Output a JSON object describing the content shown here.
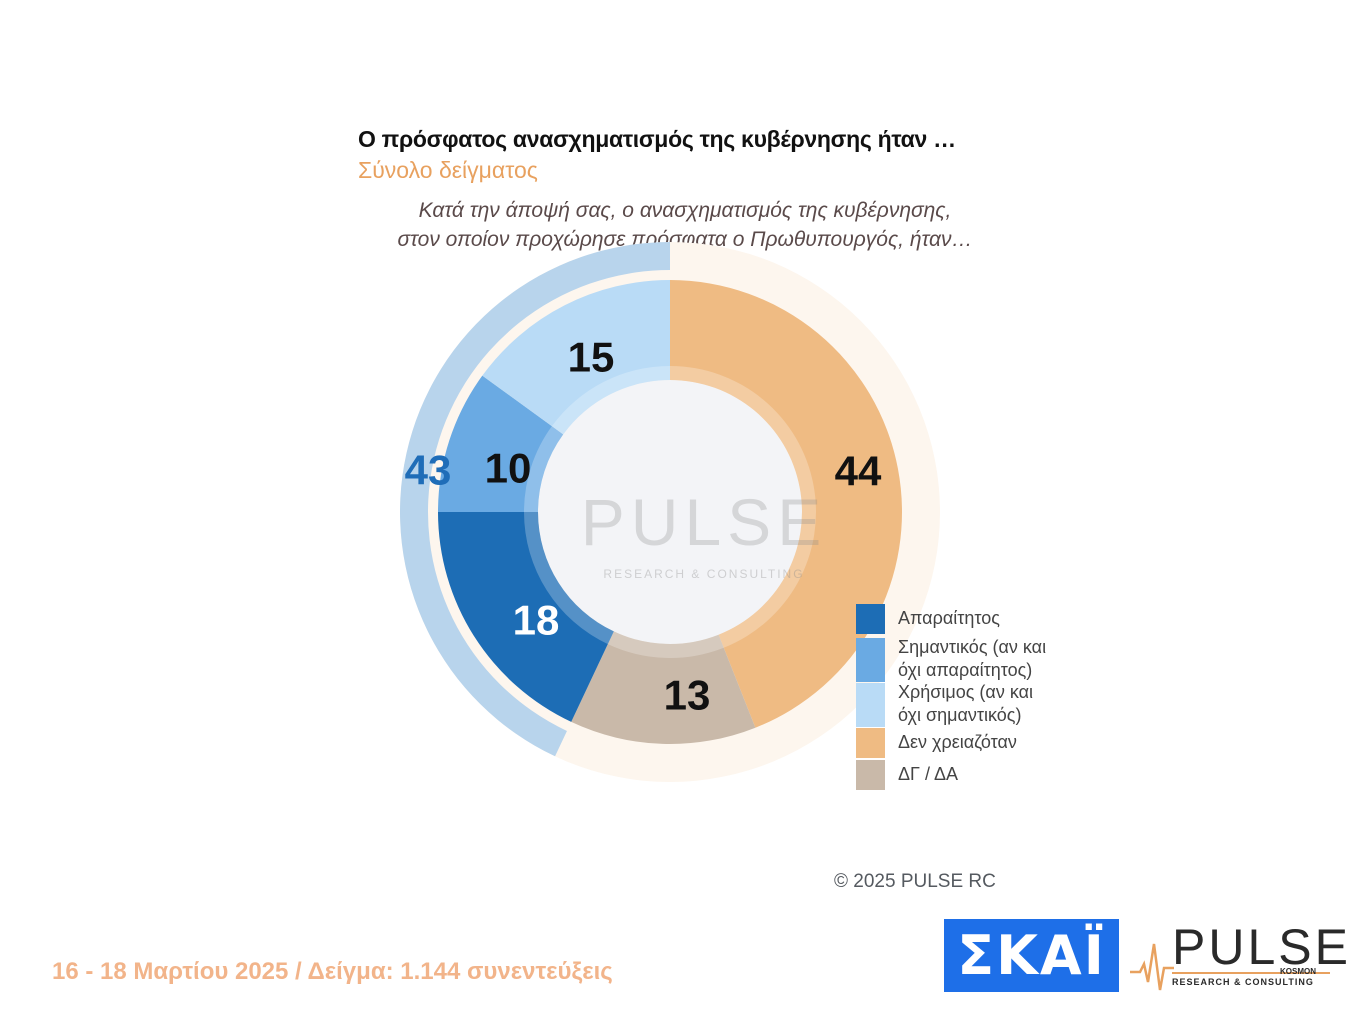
{
  "chart_data": {
    "type": "donut",
    "title": "Ο πρόσφατος ανασχηματισμός της κυβέρνησης ήταν …",
    "subtitle": "Σύνολο δείγματος",
    "question": [
      "Κατά την άποψή σας, ο ανασχηματισμός της κυβέρνησης,",
      "στον οποίον προχώρησε πρόσφατα ο Πρωθυπουργός, ήταν…"
    ],
    "series": [
      {
        "name": "Απαραίτητος",
        "value": 18,
        "label": "18",
        "color": "#1d6db5"
      },
      {
        "name": "Σημαντικός (αν και όχι απαραίτητος)",
        "value": 10,
        "label": "10",
        "color": "#6aaae3"
      },
      {
        "name": "Χρήσιμος (αν και όχι σημαντικός)",
        "value": 15,
        "label": "15",
        "color": "#b9dbf6"
      },
      {
        "name": "Δεν χρειαζόταν",
        "value": 44,
        "label": "44",
        "color": "#efbb83"
      },
      {
        "name": "ΔΓ / ΔΑ",
        "value": 13,
        "label": "13",
        "color": "#c9b9a9"
      }
    ],
    "outer_ring": {
      "value": 43,
      "label": "43",
      "color": "#b8d4ec",
      "label_color": "#1f6db8"
    }
  },
  "legend": [
    {
      "lines": [
        "Απαραίτητος"
      ],
      "color": "#1d6db5"
    },
    {
      "lines": [
        "Σημαντικός (αν και",
        "όχι απαραίτητος)"
      ],
      "color": "#6aaae3"
    },
    {
      "lines": [
        "Χρήσιμος (αν και",
        "όχι σημαντικός)"
      ],
      "color": "#b9dbf6"
    },
    {
      "lines": [
        "Δεν χρειαζόταν"
      ],
      "color": "#efbb83"
    },
    {
      "lines": [
        "ΔΓ / ΔΑ"
      ],
      "color": "#c9b9a9"
    }
  ],
  "watermark": {
    "name": "PULSE",
    "sub": "RESEARCH & CONSULTING"
  },
  "copyright": "©  2025  PULSE RC",
  "footer": "16 - 18 Μαρτίου 2025  /  Δείγμα:  1.144 συνεντεύξεις",
  "logos": {
    "skai": "ΣΚΑΪ",
    "pulse": "PULSE",
    "pulse_sub": "RESEARCH & CONSULTING",
    "pulse_kosmon": "KOSMON"
  }
}
